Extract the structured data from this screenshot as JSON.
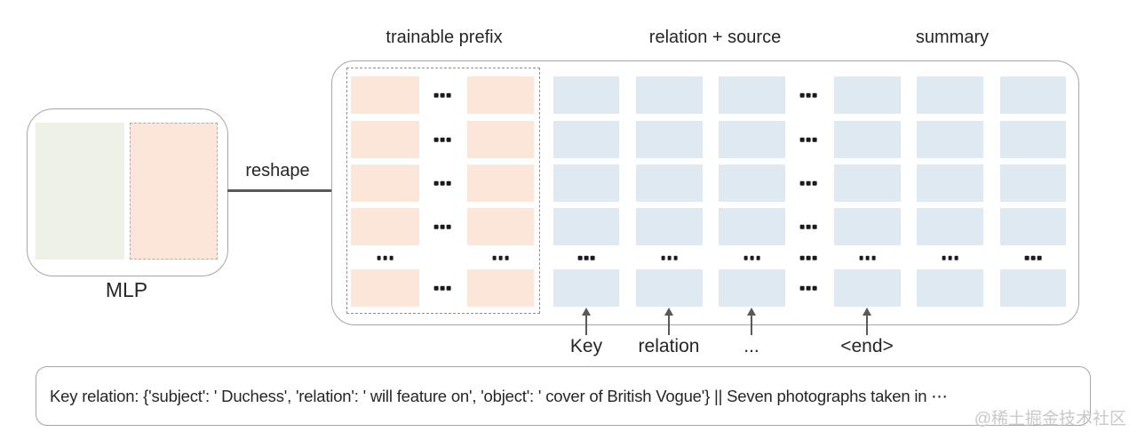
{
  "figure": {
    "type": "prefix-tuning-architecture-diagram"
  },
  "headers": {
    "trainable_prefix": "trainable prefix",
    "relation_source": "relation + source",
    "summary": "summary"
  },
  "mlp": {
    "label": "MLP"
  },
  "reshape": {
    "label": "reshape"
  },
  "tokens": [
    {
      "label": "Key"
    },
    {
      "label": "relation"
    },
    {
      "label": "..."
    },
    {
      "label": "<end>"
    }
  ],
  "grid": {
    "row_pattern": [
      "cell",
      "cell",
      "cell",
      "cell",
      "ellipsis",
      "cell"
    ],
    "columns": [
      {
        "kind": "cell",
        "color": "pink",
        "group": "trainable-prefix"
      },
      {
        "kind": "ellipsis",
        "in_ellipsis_row": false,
        "group": "trainable-prefix"
      },
      {
        "kind": "cell",
        "color": "pink",
        "group": "trainable-prefix"
      },
      {
        "kind": "cell",
        "color": "blue",
        "group": "relation-source"
      },
      {
        "kind": "cell",
        "color": "blue",
        "group": "relation-source"
      },
      {
        "kind": "cell",
        "color": "blue",
        "group": "relation-source"
      },
      {
        "kind": "ellipsis",
        "in_ellipsis_row": true,
        "group": "relation-source"
      },
      {
        "kind": "cell",
        "color": "blue",
        "group": "summary"
      },
      {
        "kind": "cell",
        "color": "blue",
        "group": "summary"
      },
      {
        "kind": "cell",
        "color": "blue",
        "group": "summary"
      }
    ]
  },
  "example": {
    "text": "Key relation: {'subject': ' Duchess', 'relation': ' will feature on', 'object': ' cover of British Vogue'} || Seven photographs taken in ⋯"
  },
  "watermark": {
    "text": "@稀土掘金技术社区"
  },
  "colors": {
    "pink": "#fce5d9",
    "blue": "#dfe9f2",
    "green": "#eef1e6",
    "border": "#a6a6a6",
    "dash": "#8f8f8f",
    "text": "#262626",
    "arrow": "#595959",
    "dots": "#1a1a1a",
    "watermark": "#c9c9c9"
  }
}
